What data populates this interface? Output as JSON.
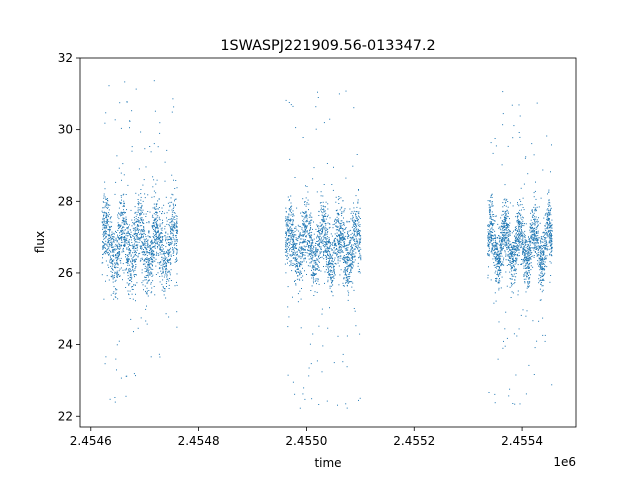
{
  "chart_data": {
    "type": "scatter",
    "title": "1SWASPJ221909.56-013347.2",
    "xlabel": "time",
    "ylabel": "flux",
    "x_offset_label": "1e6",
    "xlim": [
      2454580,
      2455500
    ],
    "ylim": [
      21.7,
      32
    ],
    "x_ticks": [
      2454600,
      2454800,
      2455000,
      2455200,
      2455400
    ],
    "x_tick_labels": [
      "2.4546",
      "2.4548",
      "2.4550",
      "2.4552",
      "2.4554"
    ],
    "y_ticks": [
      22,
      24,
      26,
      28,
      30,
      32
    ],
    "y_tick_labels": [
      "22",
      "24",
      "26",
      "28",
      "30",
      "32"
    ],
    "grid": false,
    "marker_color": "#1f77b4",
    "series": [
      {
        "values_summary": "dense observation seasons",
        "clusters": [
          {
            "x_range": [
              2454620,
              2454760
            ],
            "y_center": 26.8,
            "y_spread": 1.3,
            "outlier_range": [
              22.4,
              31.5
            ]
          },
          {
            "x_range": [
              2454960,
              2455100
            ],
            "y_center": 26.8,
            "y_spread": 1.2,
            "outlier_range": [
              22.2,
              31.1
            ]
          },
          {
            "x_range": [
              2455335,
              2455455
            ],
            "y_center": 26.8,
            "y_spread": 1.0,
            "outlier_range": [
              22.2,
              31.3
            ]
          }
        ]
      }
    ]
  }
}
